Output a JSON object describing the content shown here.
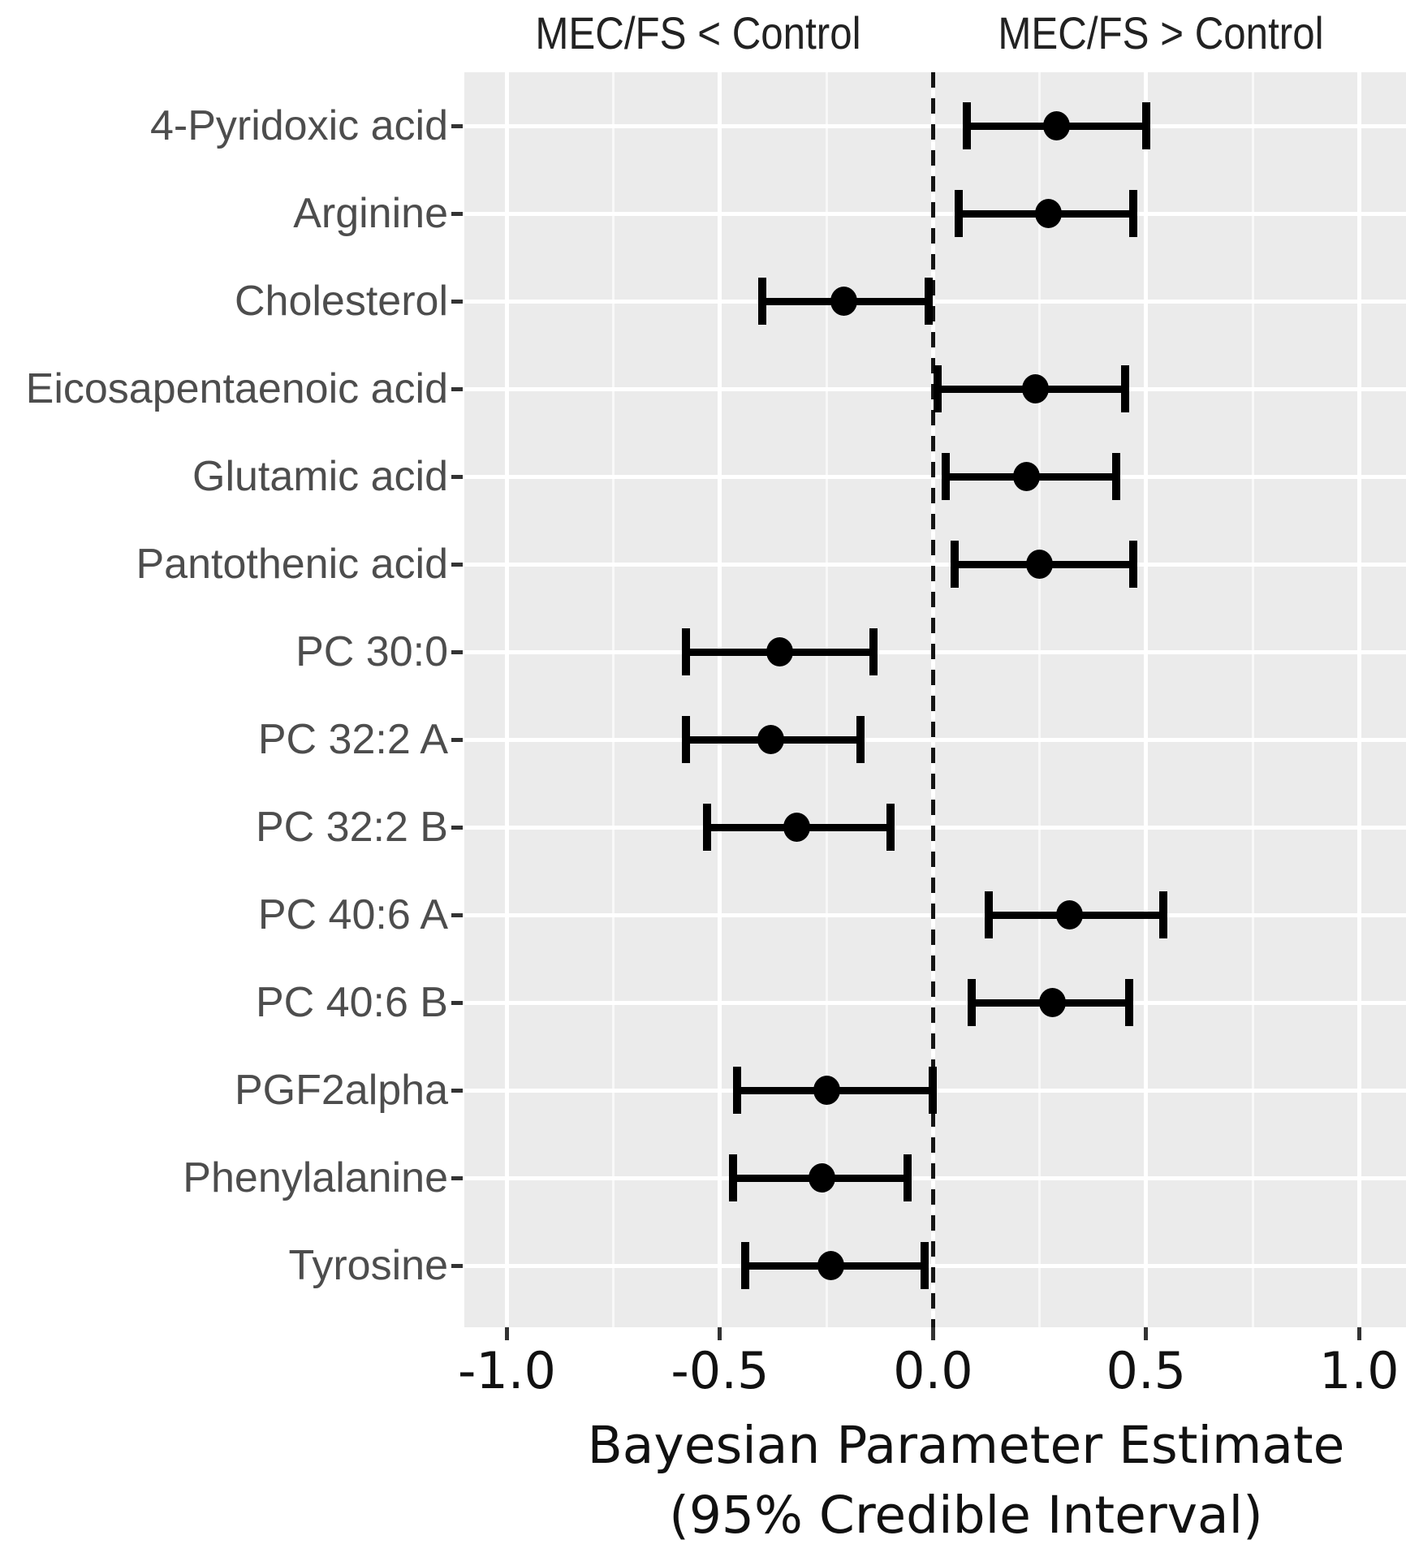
{
  "colors": {
    "panel_background": "#ebebeb",
    "grid_major": "#ffffff",
    "grid_minor": "#f7f7f7",
    "marker": "#000000",
    "reference_line": "#141414",
    "y_label_text": "#4d4d4d",
    "x_label_text": "#111111",
    "header_text": "#222222"
  },
  "chart_data": {
    "type": "scatter",
    "subtype": "forest-plot-with-95-credible-intervals",
    "header_left": "MEC/FS < Control",
    "header_right": "MEC/FS > Control",
    "xlabel_line1": "Bayesian Parameter Estimate",
    "xlabel_line2": "(95% Credible Interval)",
    "ylabel": "",
    "xlim": [
      -1.1,
      1.11
    ],
    "x_ticks": [
      -1.0,
      -0.5,
      0.0,
      0.5,
      1.0
    ],
    "x_tick_labels": [
      "-1.0",
      "-0.5",
      "0.0",
      "0.5",
      "1.0"
    ],
    "x_minor_gridlines": [
      -0.75,
      -0.25,
      0.25,
      0.75
    ],
    "reference_line_x": 0.0,
    "grid": true,
    "legend": "none",
    "categories": [
      "4-Pyridoxic acid",
      "Arginine",
      "Cholesterol",
      "Eicosapentaenoic acid",
      "Glutamic acid",
      "Pantothenic acid",
      "PC 30:0",
      "PC 32:2 A",
      "PC 32:2 B",
      "PC 40:6 A",
      "PC 40:6 B",
      "PGF2alpha",
      "Phenylalanine",
      "Tyrosine"
    ],
    "points": [
      {
        "label": "4-Pyridoxic acid",
        "estimate": 0.29,
        "lower": 0.08,
        "upper": 0.5
      },
      {
        "label": "Arginine",
        "estimate": 0.27,
        "lower": 0.06,
        "upper": 0.47
      },
      {
        "label": "Cholesterol",
        "estimate": -0.21,
        "lower": -0.4,
        "upper": -0.01
      },
      {
        "label": "Eicosapentaenoic acid",
        "estimate": 0.24,
        "lower": 0.01,
        "upper": 0.45
      },
      {
        "label": "Glutamic acid",
        "estimate": 0.22,
        "lower": 0.03,
        "upper": 0.43
      },
      {
        "label": "Pantothenic acid",
        "estimate": 0.25,
        "lower": 0.05,
        "upper": 0.47
      },
      {
        "label": "PC 30:0",
        "estimate": -0.36,
        "lower": -0.58,
        "upper": -0.14
      },
      {
        "label": "PC 32:2 A",
        "estimate": -0.38,
        "lower": -0.58,
        "upper": -0.17
      },
      {
        "label": "PC 32:2 B",
        "estimate": -0.32,
        "lower": -0.53,
        "upper": -0.1
      },
      {
        "label": "PC 40:6 A",
        "estimate": 0.32,
        "lower": 0.13,
        "upper": 0.54
      },
      {
        "label": "PC 40:6 B",
        "estimate": 0.28,
        "lower": 0.09,
        "upper": 0.46
      },
      {
        "label": "PGF2alpha",
        "estimate": -0.25,
        "lower": -0.46,
        "upper": 0.0
      },
      {
        "label": "Phenylalanine",
        "estimate": -0.26,
        "lower": -0.47,
        "upper": -0.06
      },
      {
        "label": "Tyrosine",
        "estimate": -0.24,
        "lower": -0.44,
        "upper": -0.02
      }
    ]
  }
}
